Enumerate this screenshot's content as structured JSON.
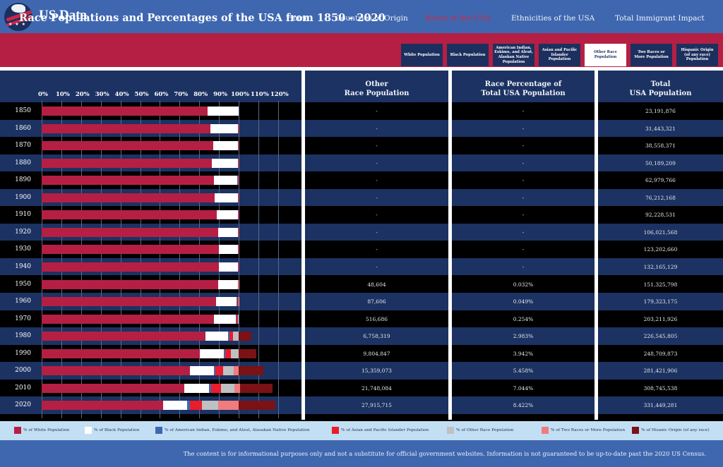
{
  "header": {
    "brand": "US Data",
    "nav": [
      {
        "label": "Home",
        "active": false
      },
      {
        "label": "Countries of Origin",
        "active": false
      },
      {
        "label": "Races of the USA",
        "active": true
      },
      {
        "label": "Ethnicities of the USA",
        "active": false
      },
      {
        "label": "Total Immigrant Impact",
        "active": false
      }
    ]
  },
  "page_title": "Race Populations and Percentages of the USA from 1850 - 2020",
  "race_tabs": [
    {
      "label": "White Population",
      "active": false
    },
    {
      "label": "Black Population",
      "active": false
    },
    {
      "label": "American Indian, Eskimo, and Aleut, Alaskan Native Population",
      "active": false
    },
    {
      "label": "Asian and Pacific Islander Population",
      "active": false
    },
    {
      "label": "Other Race Population",
      "active": true
    },
    {
      "label": "Two Races or More Population",
      "active": false
    },
    {
      "label": "Hispanic Origin (of any race) Population",
      "active": false
    }
  ],
  "table": {
    "headers": {
      "other_race": [
        "Other",
        "Race Population"
      ],
      "percentage": [
        "Race Percentage of",
        "Total USA Population"
      ],
      "total": [
        "Total",
        "USA Population"
      ]
    },
    "rows": [
      {
        "year": "1850",
        "other_race": "-",
        "percentage": "-",
        "total": "23,191,876"
      },
      {
        "year": "1860",
        "other_race": "-",
        "percentage": "-",
        "total": "31,443,321"
      },
      {
        "year": "1870",
        "other_race": "-",
        "percentage": "-",
        "total": "38,558,371"
      },
      {
        "year": "1880",
        "other_race": "-",
        "percentage": "-",
        "total": "50,189,209"
      },
      {
        "year": "1890",
        "other_race": "-",
        "percentage": "-",
        "total": "62,979,766"
      },
      {
        "year": "1900",
        "other_race": "-",
        "percentage": "-",
        "total": "76,212,168"
      },
      {
        "year": "1910",
        "other_race": "-",
        "percentage": "-",
        "total": "92,228,531"
      },
      {
        "year": "1920",
        "other_race": "-",
        "percentage": "-",
        "total": "106,021,568"
      },
      {
        "year": "1930",
        "other_race": "-",
        "percentage": "-",
        "total": "123,202,660"
      },
      {
        "year": "1940",
        "other_race": "-",
        "percentage": "-",
        "total": "132,165,129"
      },
      {
        "year": "1950",
        "other_race": "48,604",
        "percentage": "0.032%",
        "total": "151,325,798"
      },
      {
        "year": "1960",
        "other_race": "87,606",
        "percentage": "0.049%",
        "total": "179,323,175"
      },
      {
        "year": "1970",
        "other_race": "516,686",
        "percentage": "0.254%",
        "total": "203,211,926"
      },
      {
        "year": "1980",
        "other_race": "6,758,319",
        "percentage": "2.983%",
        "total": "226,545,805"
      },
      {
        "year": "1990",
        "other_race": "9,804,847",
        "percentage": "3.942%",
        "total": "248,709,873"
      },
      {
        "year": "2000",
        "other_race": "15,359,073",
        "percentage": "5.458%",
        "total": "281,421,906"
      },
      {
        "year": "2010",
        "other_race": "21,748,084",
        "percentage": "7.044%",
        "total": "308,745,538"
      },
      {
        "year": "2020",
        "other_race": "27,915,715",
        "percentage": "8.422%",
        "total": "331,449,281"
      }
    ]
  },
  "chart_data": {
    "type": "bar",
    "orientation": "horizontal",
    "stacked": true,
    "title": "",
    "xlabel": "",
    "ylabel": "",
    "xlim": [
      0,
      120
    ],
    "x_ticks": [
      "0%",
      "10%",
      "20%",
      "30%",
      "40%",
      "50%",
      "60%",
      "70%",
      "80%",
      "90%",
      "100%",
      "110%",
      "120%"
    ],
    "grid": true,
    "legend_position": "bottom",
    "categories": [
      "1850",
      "1860",
      "1870",
      "1880",
      "1890",
      "1900",
      "1910",
      "1920",
      "1930",
      "1940",
      "1950",
      "1960",
      "1970",
      "1980",
      "1990",
      "2000",
      "2010",
      "2020"
    ],
    "series": [
      {
        "name": "% of White Population",
        "color": "#b61f44",
        "values": [
          84.3,
          85.6,
          87.1,
          86.5,
          87.5,
          87.9,
          88.9,
          89.7,
          89.8,
          89.8,
          89.5,
          88.6,
          87.5,
          83.1,
          80.3,
          75.1,
          72.4,
          61.6
        ]
      },
      {
        "name": "% of Black Population",
        "color": "#ffffff",
        "values": [
          15.7,
          14.1,
          12.7,
          13.1,
          11.9,
          11.6,
          10.7,
          9.9,
          9.7,
          9.8,
          10.0,
          10.5,
          11.1,
          11.7,
          12.1,
          12.3,
          12.6,
          12.4
        ]
      },
      {
        "name": "% of American Indian, Eskimo, and Aleut, Alaskan Native Population",
        "color": "#3f67b0",
        "values": [
          0,
          0,
          0,
          0.1,
          0.4,
          0.3,
          0.3,
          0.2,
          0.3,
          0.3,
          0.2,
          0.3,
          0.4,
          0.6,
          0.8,
          0.9,
          0.9,
          1.1
        ]
      },
      {
        "name": "% of Asian and Pacific Islander Population",
        "color": "#ea1d2c",
        "values": [
          0,
          0.1,
          0.2,
          0.3,
          0.2,
          0.2,
          0.2,
          0.2,
          0.2,
          0.2,
          0.3,
          0.6,
          0.8,
          1.6,
          2.9,
          3.8,
          5.0,
          6.2
        ]
      },
      {
        "name": "% of Other Race Population",
        "color": "#bfc0c4",
        "values": [
          0,
          0,
          0,
          0,
          0,
          0,
          0,
          0,
          0,
          0,
          0.032,
          0.049,
          0.254,
          2.983,
          3.942,
          5.458,
          7.044,
          8.422
        ]
      },
      {
        "name": "% of Two Races or More Population",
        "color": "#f07c7e",
        "values": [
          0,
          0,
          0,
          0,
          0,
          0,
          0,
          0,
          0,
          0,
          0,
          0,
          0,
          0,
          0,
          2.4,
          2.9,
          10.2
        ]
      },
      {
        "name": "% of Hisanic Origin (of any race)",
        "color": "#7a1216",
        "values": [
          0,
          0,
          0,
          0,
          0,
          0,
          0,
          0,
          0,
          0,
          0,
          0,
          0,
          6.4,
          9.0,
          12.5,
          16.3,
          18.7
        ]
      }
    ]
  },
  "legend": [
    {
      "label": "% of White Population",
      "color": "#b61f44"
    },
    {
      "label": "% of Black Population",
      "color": "#ffffff"
    },
    {
      "label": "% of American Indian, Eskimo, and Aleut, Alasakan Native Population",
      "color": "#3f67b0"
    },
    {
      "label": "% of Asian and Pacific Islander Population",
      "color": "#ea1d2c"
    },
    {
      "label": "% of Other Race Population",
      "color": "#bfc0c4"
    },
    {
      "label": "% of Two Races or More Population",
      "color": "#f07c7e"
    },
    {
      "label": "% of Hisanic Origin (of any race)",
      "color": "#7a1216"
    }
  ],
  "footer": "The content is for informational purposes only and not a substitute for official government websites. Information is not guaranteed to be up-to-date past the 2020 US Census."
}
